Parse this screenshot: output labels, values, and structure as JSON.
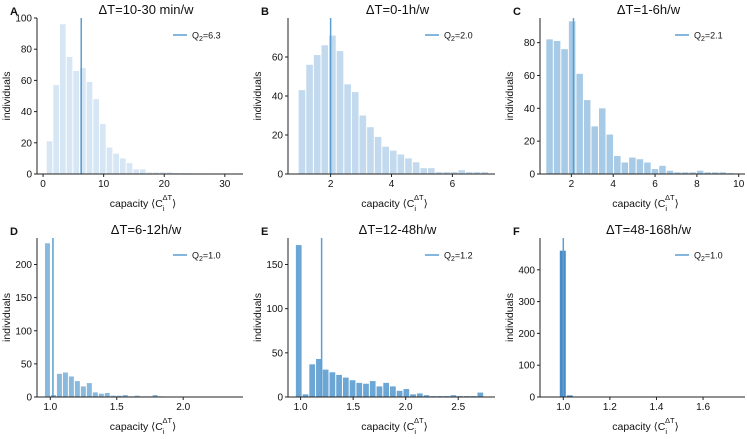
{
  "figure": {
    "xlabel_prefix": "capacity ⟨C",
    "xlabel_sub": "i",
    "xlabel_sup": "ΔT",
    "xlabel_suffix": "⟩",
    "ylabel": "individuals",
    "legend_prefix": "Q",
    "legend_sub": "2"
  },
  "chart_data": [
    {
      "type": "bar",
      "panel": "A",
      "title": "ΔT=10-30 min/w",
      "color": "#d6e6f4",
      "legend_value": "=6.3",
      "q2": 6.3,
      "xlim": [
        -1,
        33
      ],
      "ylim": [
        0,
        100
      ],
      "xticks": [
        0,
        10,
        20,
        30
      ],
      "xticklabels": [
        "0",
        "10",
        "20",
        "30"
      ],
      "yticks": [
        0,
        20,
        40,
        60,
        80,
        100
      ],
      "yticklabels": [
        "0",
        "20",
        "40",
        "60",
        "80",
        "100"
      ],
      "bin_start": 0.6,
      "bin_width": 1.1,
      "values": [
        21,
        57,
        96,
        75,
        66,
        68,
        59,
        48,
        32,
        17,
        13,
        10,
        7,
        3,
        3,
        1,
        1,
        1,
        1,
        0.6,
        0.5,
        0.5,
        0.4,
        0.4,
        0.3,
        0.3,
        0.3,
        0.2,
        0.2
      ]
    },
    {
      "type": "bar",
      "panel": "B",
      "title": "ΔT=0-1h/w",
      "color": "#c2d9ee",
      "legend_value": "=2.0",
      "q2": 2.0,
      "xlim": [
        0.6,
        7.4
      ],
      "ylim": [
        0,
        80
      ],
      "xticks": [
        2,
        4,
        6
      ],
      "xticklabels": [
        "2",
        "4",
        "6"
      ],
      "yticks": [
        0,
        20,
        40,
        60
      ],
      "yticklabels": [
        "0",
        "20",
        "40",
        "60"
      ],
      "bin_start": 0.95,
      "bin_width": 0.25,
      "values": [
        43,
        56,
        61,
        66,
        71,
        63,
        46,
        42,
        30,
        24,
        19,
        14,
        12,
        10,
        8,
        6,
        3,
        3,
        1,
        1,
        1,
        2,
        1,
        1,
        1
      ]
    },
    {
      "type": "bar",
      "panel": "C",
      "title": "ΔT=1-6h/w",
      "color": "#a7cbe6",
      "legend_value": "=2.1",
      "q2": 2.1,
      "xlim": [
        0.5,
        10.3
      ],
      "ylim": [
        0,
        95
      ],
      "xticks": [
        2,
        4,
        6,
        8,
        10
      ],
      "xticklabels": [
        "2",
        "4",
        "6",
        "8",
        "10"
      ],
      "yticks": [
        0,
        20,
        40,
        60,
        80
      ],
      "yticklabels": [
        "0",
        "20",
        "40",
        "60",
        "80"
      ],
      "bin_start": 0.8,
      "bin_width": 0.36,
      "values": [
        82,
        81,
        76,
        93,
        61,
        45,
        29,
        40,
        24,
        11,
        7,
        10,
        9,
        7,
        3,
        5,
        2,
        1,
        1,
        1,
        2,
        1,
        1,
        1,
        0.5
      ]
    },
    {
      "type": "bar",
      "panel": "D",
      "title": "ΔT=6-12h/w",
      "color": "#8ab9de",
      "legend_value": "=1.0",
      "q2": 1.02,
      "xlim": [
        0.9,
        2.45
      ],
      "ylim": [
        0,
        240
      ],
      "xticks": [
        1.0,
        1.5,
        2.0
      ],
      "xticklabels": [
        "1.0",
        "1.5",
        "2.0"
      ],
      "yticks": [
        0,
        50,
        100,
        150,
        200
      ],
      "yticklabels": [
        "0",
        "50",
        "100",
        "150",
        "200"
      ],
      "bin_start": 0.96,
      "bin_width": 0.045,
      "values": [
        232,
        3,
        35,
        37,
        31,
        24,
        16,
        21,
        7,
        5,
        6,
        2,
        2,
        3,
        1,
        2,
        1,
        1,
        3,
        1
      ]
    },
    {
      "type": "bar",
      "panel": "E",
      "title": "ΔT=12-48h/w",
      "color": "#6ba6d4",
      "legend_value": "=1.2",
      "q2": 1.2,
      "xlim": [
        0.88,
        2.85
      ],
      "ylim": [
        0,
        180
      ],
      "xticks": [
        1.0,
        1.5,
        2.0,
        2.5
      ],
      "xticklabels": [
        "1.0",
        "1.5",
        "2.0",
        "2.5"
      ],
      "yticks": [
        0,
        50,
        100,
        150
      ],
      "yticklabels": [
        "0",
        "50",
        "100",
        "150"
      ],
      "bin_start": 0.955,
      "bin_width": 0.064,
      "values": [
        172,
        3,
        37,
        43,
        31,
        28,
        25,
        22,
        19,
        16,
        15,
        18,
        12,
        16,
        12,
        7,
        9,
        3,
        4,
        2,
        1,
        1,
        1,
        2,
        1,
        1,
        1,
        5
      ]
    },
    {
      "type": "bar",
      "panel": "F",
      "title": "ΔT=48-168h/w",
      "color": "#4c8bc6",
      "legend_value": "=1.0",
      "q2": 1.0,
      "xlim": [
        0.9,
        1.78
      ],
      "ylim": [
        0,
        500
      ],
      "xticks": [
        1.0,
        1.2,
        1.4,
        1.6
      ],
      "xticklabels": [
        "1.0",
        "1.2",
        "1.4",
        "1.6"
      ],
      "yticks": [
        0,
        100,
        200,
        300,
        400
      ],
      "yticklabels": [
        "0",
        "100",
        "200",
        "300",
        "400"
      ],
      "bin_start": 0.985,
      "bin_width": 0.03,
      "values": [
        460,
        5,
        1
      ]
    }
  ]
}
